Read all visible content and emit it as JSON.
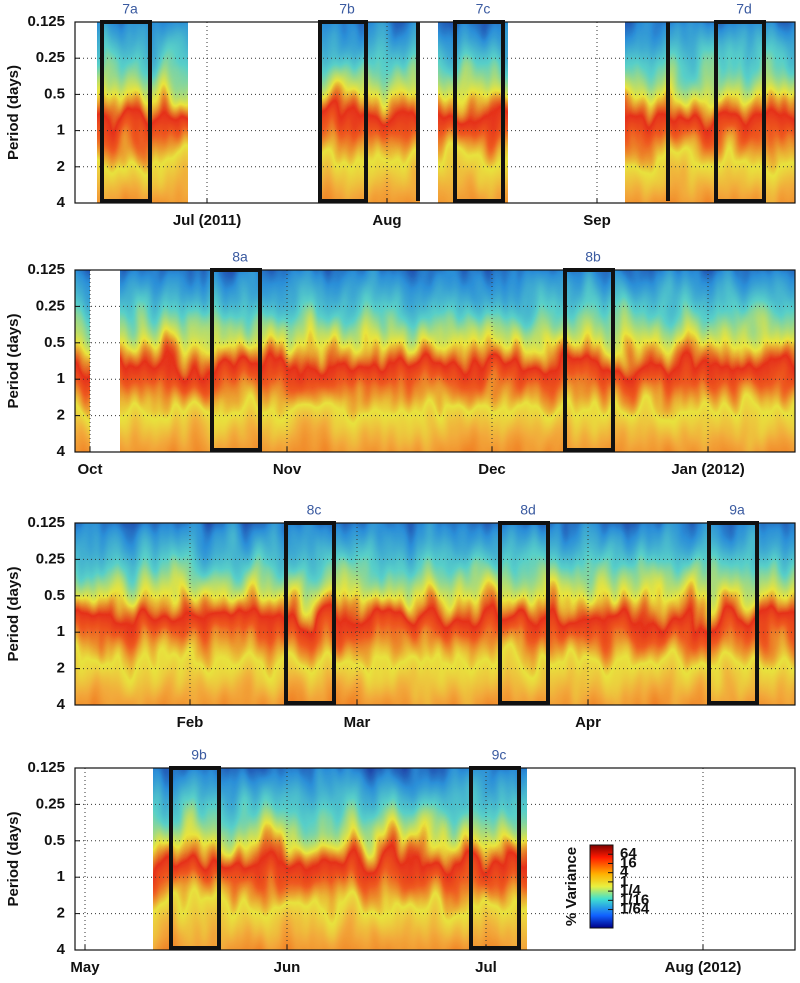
{
  "chart_data": [
    {
      "type": "heatmap",
      "ylabel": "Period (days)",
      "ylim": [
        0.125,
        4
      ],
      "yticks": [
        0.125,
        0.25,
        0.5,
        1,
        2,
        4
      ],
      "log_y": true,
      "y_reversed": true,
      "grid": true,
      "xtick_labels": [
        "Jul (2011)",
        "Aug",
        "Sep"
      ],
      "annotations": [
        "7a",
        "7b",
        "7c",
        "7d"
      ]
    },
    {
      "type": "heatmap",
      "ylabel": "Period (days)",
      "ylim": [
        0.125,
        4
      ],
      "yticks": [
        0.125,
        0.25,
        0.5,
        1,
        2,
        4
      ],
      "log_y": true,
      "y_reversed": true,
      "grid": true,
      "xtick_labels": [
        "Oct",
        "Nov",
        "Dec",
        "Jan (2012)"
      ],
      "annotations": [
        "8a",
        "8b"
      ]
    },
    {
      "type": "heatmap",
      "ylabel": "Period (days)",
      "ylim": [
        0.125,
        4
      ],
      "yticks": [
        0.125,
        0.25,
        0.5,
        1,
        2,
        4
      ],
      "log_y": true,
      "y_reversed": true,
      "grid": true,
      "xtick_labels": [
        "Feb",
        "Mar",
        "Apr"
      ],
      "annotations": [
        "8c",
        "8d",
        "9a"
      ]
    },
    {
      "type": "heatmap",
      "ylabel": "Period (days)",
      "ylim": [
        0.125,
        4
      ],
      "yticks": [
        0.125,
        0.25,
        0.5,
        1,
        2,
        4
      ],
      "log_y": true,
      "y_reversed": true,
      "grid": true,
      "xtick_labels": [
        "May",
        "Jun",
        "Jul",
        "Aug (2012)"
      ],
      "annotations": [
        "9b",
        "9c"
      ],
      "colorbar": {
        "label": "% Variance",
        "lim": [
          0.0009765625,
          256
        ],
        "log": true,
        "ticks": [
          64,
          16,
          4,
          1,
          {
            "value": 0.25,
            "label": "1/4"
          },
          {
            "value": 0.0625,
            "label": "1/16"
          },
          {
            "value": 0.015625,
            "label": "1/64"
          }
        ]
      }
    }
  ]
}
